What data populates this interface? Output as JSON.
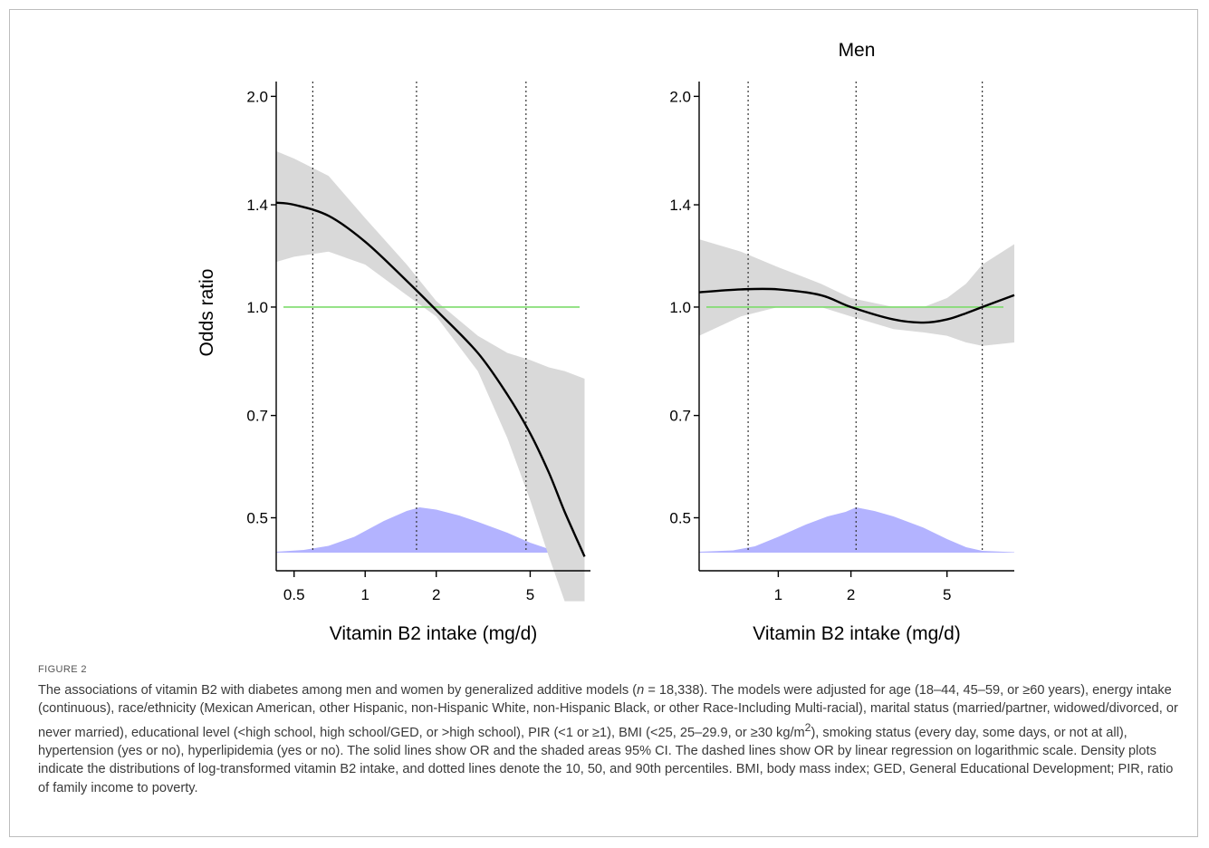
{
  "figure_label": "FIGURE 2",
  "caption": {
    "part1": "The associations of vitamin B2 with diabetes among men and women by generalized additive models (",
    "n_symbol": "n",
    "part2": " = 18,338). The models were adjusted for age (18–44, 45–59, or ≥60 years), energy intake (continuous), race/ethnicity (Mexican American, other Hispanic, non-Hispanic White, non-Hispanic Black, or other Race-Including Multi-racial), marital status (married/partner, widowed/divorced, or never married), educational level (<high school, high school/GED, or >high school), PIR (<1 or ≥1), BMI (<25, 25–29.9, or ≥30 kg/m",
    "sup": "2",
    "part3": "), smoking status (every day, some days, or not at all), hypertension (yes or no), hyperlipidemia (yes or no). The solid lines show OR and the shaded areas 95% CI. The dashed lines show OR by linear regression on logarithmic scale. Density plots indicate the distributions of log-transformed vitamin B2 intake, and dotted lines denote the 10, 50, and 90th percentiles. BMI, body mass index; GED, General Educational Development; PIR, ratio of family income to poverty."
  },
  "colors": {
    "curve": "#000000",
    "ci_band": "#d9d9d9",
    "reference_line": "#7ddc6b",
    "density": "#b3b3ff",
    "percentile_line": "#333333"
  },
  "chart_data": [
    {
      "type": "line",
      "title": "",
      "xlabel": "Vitamin B2 intake (mg/d)",
      "ylabel": "Odds ratio",
      "x_scale": "log",
      "y_scale": "log",
      "xlim": [
        0.42,
        9.0
      ],
      "ylim": [
        0.42,
        2.1
      ],
      "x_ticks": [
        0.5,
        1,
        2,
        5
      ],
      "x_tick_labels": [
        "0.5",
        "1",
        "2",
        "5"
      ],
      "y_ticks": [
        0.5,
        0.7,
        1.0,
        1.4,
        2.0
      ],
      "y_tick_labels": [
        "0.5",
        "0.7",
        "1.0",
        "1.4",
        "2.0"
      ],
      "reference_line_y": 1.0,
      "percentile_lines_x": [
        0.6,
        1.65,
        4.8
      ],
      "series": [
        {
          "x": [
            0.42,
            0.5,
            0.7,
            1.0,
            1.5,
            2.0,
            3.0,
            4.0,
            5.0,
            6.0,
            7.0,
            8.5
          ],
          "y": [
            1.41,
            1.4,
            1.35,
            1.24,
            1.09,
            0.99,
            0.86,
            0.75,
            0.66,
            0.58,
            0.51,
            0.44
          ],
          "lower": [
            1.16,
            1.18,
            1.2,
            1.15,
            1.04,
            0.97,
            0.81,
            0.65,
            0.53,
            0.44,
            0.38,
            0.38
          ],
          "upper": [
            1.67,
            1.63,
            1.54,
            1.34,
            1.15,
            1.02,
            0.91,
            0.86,
            0.84,
            0.82,
            0.81,
            0.79
          ]
        }
      ],
      "density": {
        "x": [
          0.42,
          0.55,
          0.7,
          0.9,
          1.2,
          1.5,
          1.7,
          2.0,
          2.5,
          3.0,
          4.0,
          5.0,
          6.0,
          7.0,
          8.5
        ],
        "height": [
          0.02,
          0.06,
          0.15,
          0.35,
          0.7,
          0.92,
          1.0,
          0.95,
          0.82,
          0.68,
          0.44,
          0.22,
          0.08,
          0.03,
          0.01
        ]
      }
    },
    {
      "type": "line",
      "title": "Men",
      "xlabel": "Vitamin B2 intake (mg/d)",
      "ylabel": "",
      "x_scale": "log",
      "y_scale": "log",
      "xlim": [
        0.47,
        9.5
      ],
      "ylim": [
        0.42,
        2.1
      ],
      "x_ticks": [
        1,
        2,
        5
      ],
      "x_tick_labels": [
        "1",
        "2",
        "5"
      ],
      "y_ticks": [
        0.5,
        0.7,
        1.0,
        1.4,
        2.0
      ],
      "y_tick_labels": [
        "0.5",
        "0.7",
        "1.0",
        "1.4",
        "2.0"
      ],
      "reference_line_y": 1.0,
      "percentile_lines_x": [
        0.75,
        2.1,
        7.0
      ],
      "series": [
        {
          "x": [
            0.47,
            0.7,
            1.0,
            1.5,
            2.0,
            3.0,
            4.0,
            5.0,
            6.0,
            7.0,
            9.5
          ],
          "y": [
            1.05,
            1.06,
            1.06,
            1.04,
            1.0,
            0.96,
            0.95,
            0.96,
            0.98,
            1.0,
            1.04
          ],
          "lower": [
            0.91,
            0.97,
            1.0,
            1.0,
            0.97,
            0.93,
            0.92,
            0.91,
            0.89,
            0.88,
            0.89
          ],
          "upper": [
            1.25,
            1.2,
            1.14,
            1.08,
            1.03,
            1.0,
            1.0,
            1.03,
            1.08,
            1.15,
            1.23
          ]
        }
      ],
      "density": {
        "x": [
          0.47,
          0.65,
          0.8,
          1.0,
          1.3,
          1.6,
          1.9,
          2.1,
          2.5,
          3.0,
          4.0,
          5.0,
          6.0,
          7.0,
          9.5
        ],
        "height": [
          0.02,
          0.05,
          0.14,
          0.35,
          0.62,
          0.8,
          0.9,
          1.0,
          0.92,
          0.8,
          0.55,
          0.3,
          0.12,
          0.04,
          0.01
        ]
      }
    }
  ]
}
